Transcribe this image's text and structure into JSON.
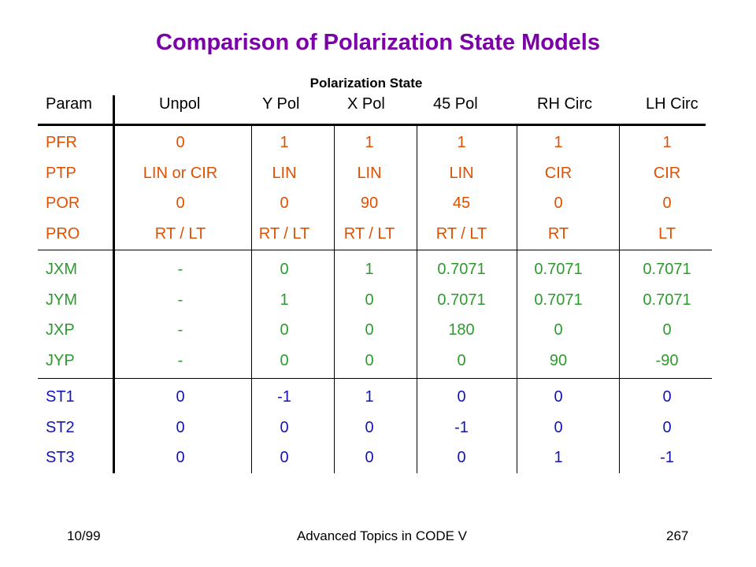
{
  "title": "Comparison of Polarization State Models",
  "subtitle": "Polarization  State",
  "headers": [
    "Param",
    "Unpol",
    "Y Pol",
    "X Pol",
    "45 Pol",
    "RH Circ",
    "LH Circ"
  ],
  "groups": [
    {
      "color": "#E05000",
      "rows": [
        [
          "PFR",
          "0",
          "1",
          "1",
          "1",
          "1",
          "1"
        ],
        [
          "PTP",
          "LIN or CIR",
          "LIN",
          "LIN",
          "LIN",
          "CIR",
          "CIR"
        ],
        [
          "POR",
          "0",
          "0",
          "90",
          "45",
          "0",
          "0"
        ],
        [
          "PRO",
          "RT / LT",
          "RT / LT",
          "RT / LT",
          "RT / LT",
          "RT",
          "LT"
        ]
      ]
    },
    {
      "color": "#2E9A2E",
      "rows": [
        [
          "JXM",
          "-",
          "0",
          "1",
          "0.7071",
          "0.7071",
          "0.7071"
        ],
        [
          "JYM",
          "-",
          "1",
          "0",
          "0.7071",
          "0.7071",
          "0.7071"
        ],
        [
          "JXP",
          "-",
          "0",
          "0",
          "180",
          "0",
          "0"
        ],
        [
          "JYP",
          "-",
          "0",
          "0",
          "0",
          "90",
          "-90"
        ]
      ]
    },
    {
      "color": "#1414B4",
      "rows": [
        [
          "ST1",
          "0",
          "-1",
          "1",
          "0",
          "0",
          "0"
        ],
        [
          "ST2",
          "0",
          "0",
          "0",
          "-1",
          "0",
          "0"
        ],
        [
          "ST3",
          "0",
          "0",
          "0",
          "0",
          "1",
          "-1"
        ]
      ]
    }
  ],
  "footer": {
    "left": "10/99",
    "center": "Advanced Topics in CODE V",
    "right": "267"
  }
}
